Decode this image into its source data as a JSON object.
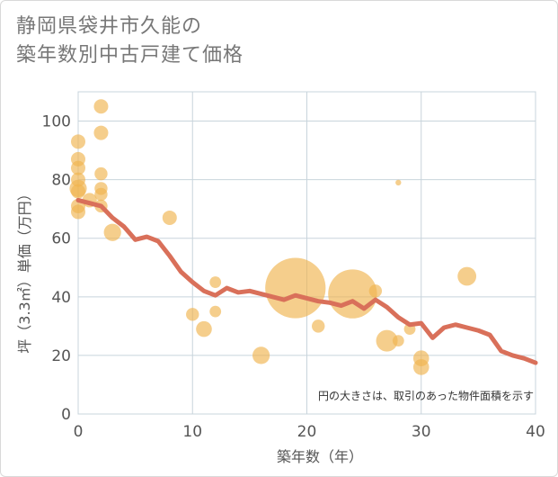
{
  "chart_data": {
    "type": "scatter",
    "title_line1": "静岡県袋井市久能の",
    "title_line2": "築年数別中古戸建て価格",
    "xlabel": "築年数（年）",
    "ylabel": "坪（3.3㎡）単価（万円）",
    "xlim": [
      0,
      40
    ],
    "ylim": [
      0,
      110
    ],
    "x_ticks": [
      0,
      10,
      20,
      30,
      40
    ],
    "y_ticks": [
      0,
      20,
      40,
      60,
      80,
      100
    ],
    "grid": true,
    "note": "円の大きさは、取引のあった物件面積を示す",
    "colors": {
      "bubble": "#f0b44e",
      "line": "#d9705a",
      "grid": "#c8d4dc"
    },
    "bubbles": [
      {
        "x": 0,
        "y": 93,
        "size": 1.0
      },
      {
        "x": 0,
        "y": 87,
        "size": 1.0
      },
      {
        "x": 0,
        "y": 84,
        "size": 1.0
      },
      {
        "x": 0,
        "y": 80,
        "size": 1.0
      },
      {
        "x": 0,
        "y": 77,
        "size": 1.2
      },
      {
        "x": 0,
        "y": 76,
        "size": 1.0
      },
      {
        "x": 0,
        "y": 71,
        "size": 1.0
      },
      {
        "x": 0,
        "y": 69,
        "size": 1.0
      },
      {
        "x": 1,
        "y": 73,
        "size": 1.0
      },
      {
        "x": 2,
        "y": 105,
        "size": 1.0
      },
      {
        "x": 2,
        "y": 96,
        "size": 1.0
      },
      {
        "x": 2,
        "y": 82,
        "size": 0.9
      },
      {
        "x": 2,
        "y": 77,
        "size": 0.9
      },
      {
        "x": 2,
        "y": 75,
        "size": 0.9
      },
      {
        "x": 2,
        "y": 71,
        "size": 0.9
      },
      {
        "x": 3,
        "y": 62,
        "size": 1.2
      },
      {
        "x": 8,
        "y": 67,
        "size": 1.0
      },
      {
        "x": 10,
        "y": 34,
        "size": 0.9
      },
      {
        "x": 11,
        "y": 29,
        "size": 1.1
      },
      {
        "x": 12,
        "y": 45,
        "size": 0.8
      },
      {
        "x": 12,
        "y": 35,
        "size": 0.8
      },
      {
        "x": 16,
        "y": 20,
        "size": 1.2
      },
      {
        "x": 19,
        "y": 43,
        "size": 4.2
      },
      {
        "x": 21,
        "y": 30,
        "size": 0.9
      },
      {
        "x": 24,
        "y": 41,
        "size": 3.4
      },
      {
        "x": 26,
        "y": 42,
        "size": 0.9
      },
      {
        "x": 27,
        "y": 25,
        "size": 1.5
      },
      {
        "x": 28,
        "y": 79,
        "size": 0.4
      },
      {
        "x": 28,
        "y": 25,
        "size": 0.8
      },
      {
        "x": 29,
        "y": 29,
        "size": 0.8
      },
      {
        "x": 30,
        "y": 19,
        "size": 1.1
      },
      {
        "x": 30,
        "y": 16,
        "size": 1.1
      },
      {
        "x": 34,
        "y": 47,
        "size": 1.3
      }
    ],
    "trend": {
      "x": [
        0,
        2,
        3,
        4,
        5,
        6,
        7,
        8,
        9,
        10,
        11,
        12,
        13,
        14,
        15,
        16,
        17,
        18,
        19,
        20,
        21,
        22,
        23,
        24,
        25,
        26,
        27,
        28,
        29,
        30,
        31,
        32,
        33,
        34,
        35,
        36,
        37,
        38,
        39,
        40
      ],
      "y": [
        73,
        71,
        67,
        64,
        59.5,
        60.5,
        59,
        54,
        48.5,
        45,
        42,
        40.5,
        43,
        41.5,
        42,
        41,
        40,
        39,
        40.5,
        39.5,
        38.5,
        38,
        37,
        38.5,
        36,
        39,
        36.5,
        33,
        30.5,
        31,
        26,
        29.5,
        30.5,
        29.5,
        28.5,
        27,
        21.5,
        20,
        19,
        17.5
      ]
    }
  }
}
